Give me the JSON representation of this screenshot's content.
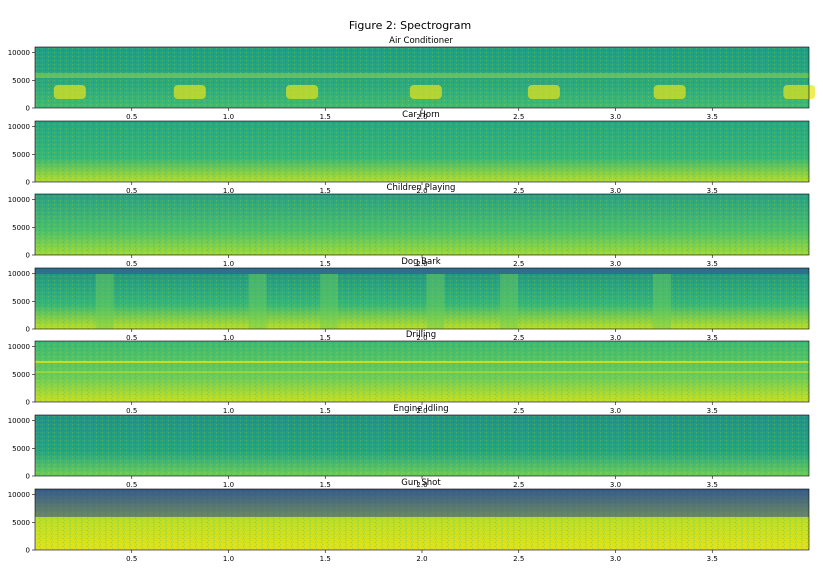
{
  "figure": {
    "title": "Figure 2: Spectrogram"
  },
  "chart_data": {
    "type": "heatmap",
    "colormap": "viridis",
    "xlim": [
      0.0,
      4.0
    ],
    "ylim": [
      0,
      11025
    ],
    "x_ticks": [
      "0.5",
      "1.0",
      "1.5",
      "2.0",
      "2.5",
      "3.0",
      "3.5"
    ],
    "x_tick_values": [
      0.5,
      1.0,
      1.5,
      2.0,
      2.5,
      3.0,
      3.5
    ],
    "y_ticks": [
      "0",
      "5000",
      "10000"
    ],
    "y_tick_values": [
      0,
      5000,
      10000
    ],
    "panels": [
      {
        "title": "Air Conditioner"
      },
      {
        "title": "Car Horn"
      },
      {
        "title": "Children Playing"
      },
      {
        "title": "Dog Bark"
      },
      {
        "title": "Drilling"
      },
      {
        "title": "Engine Idling"
      },
      {
        "title": "Gun Shot"
      }
    ]
  }
}
